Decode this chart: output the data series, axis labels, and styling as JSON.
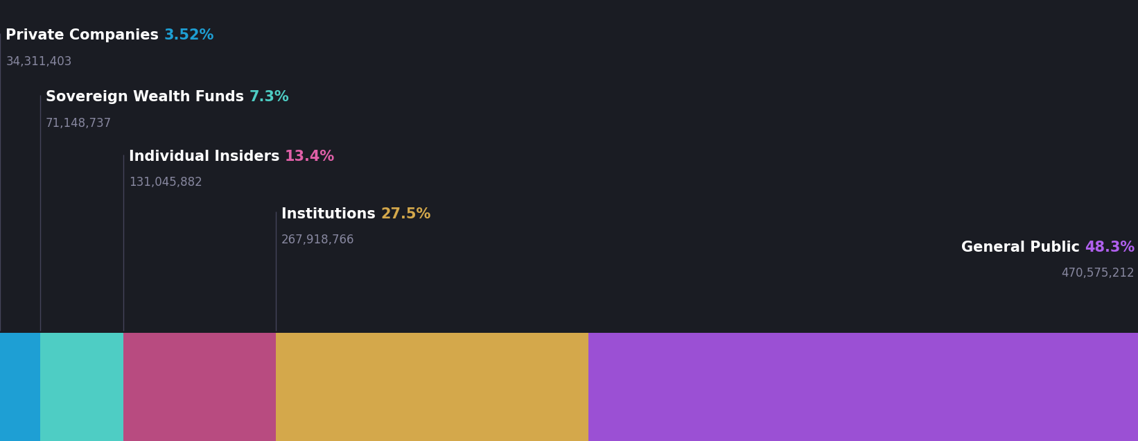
{
  "background_color": "#1a1c23",
  "categories": [
    "Private Companies",
    "Sovereign Wealth Funds",
    "Individual Insiders",
    "Institutions",
    "General Public"
  ],
  "percentages": [
    3.52,
    7.3,
    13.4,
    27.5,
    48.3
  ],
  "values": [
    "34,311,403",
    "71,148,737",
    "131,045,882",
    "267,918,766",
    "470,575,212"
  ],
  "bar_colors": [
    "#1e9fd4",
    "#4ecdc4",
    "#b84b80",
    "#d4a84b",
    "#9b50d4"
  ],
  "pct_colors": [
    "#1e9fd4",
    "#4ecdc4",
    "#e060a8",
    "#d4a84b",
    "#b060ee"
  ],
  "figsize": [
    16.42,
    6.36
  ],
  "dpi": 100,
  "name_fontsize": 15,
  "pct_fontsize": 15,
  "val_fontsize": 12
}
